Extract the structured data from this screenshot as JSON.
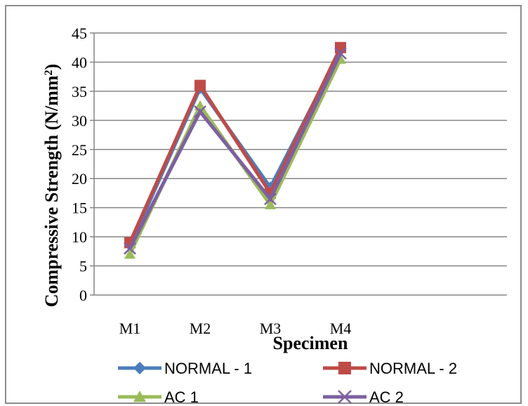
{
  "chart_data": {
    "type": "line",
    "title": "",
    "xlabel": "Specimen",
    "ylabel": "Compressive Strength (N/mm²)",
    "ylabel_main": "Compressive Strength (N/mm",
    "ylabel_sup": "2",
    "ylabel_close": ")",
    "categories": [
      "M1",
      "M2",
      "M3",
      "M4"
    ],
    "ylim": [
      0,
      45
    ],
    "yticks": [
      0,
      5,
      10,
      15,
      20,
      25,
      30,
      35,
      40,
      45
    ],
    "grid": true,
    "legend_position": "bottom",
    "series": [
      {
        "name": "NORMAL - 1",
        "values": [
          8.5,
          35.5,
          18.5,
          42.0
        ],
        "color": "#4a7ebb",
        "marker": "diamond"
      },
      {
        "name": "NORMAL - 2",
        "values": [
          9.0,
          36.0,
          17.5,
          42.5
        ],
        "color": "#be4b48",
        "marker": "square"
      },
      {
        "name": "AC 1",
        "values": [
          7.0,
          32.5,
          15.5,
          40.5
        ],
        "color": "#9bbb59",
        "marker": "triangle"
      },
      {
        "name": "AC 2",
        "values": [
          8.0,
          31.5,
          16.5,
          41.5
        ],
        "color": "#7d60a0",
        "marker": "x"
      }
    ]
  }
}
